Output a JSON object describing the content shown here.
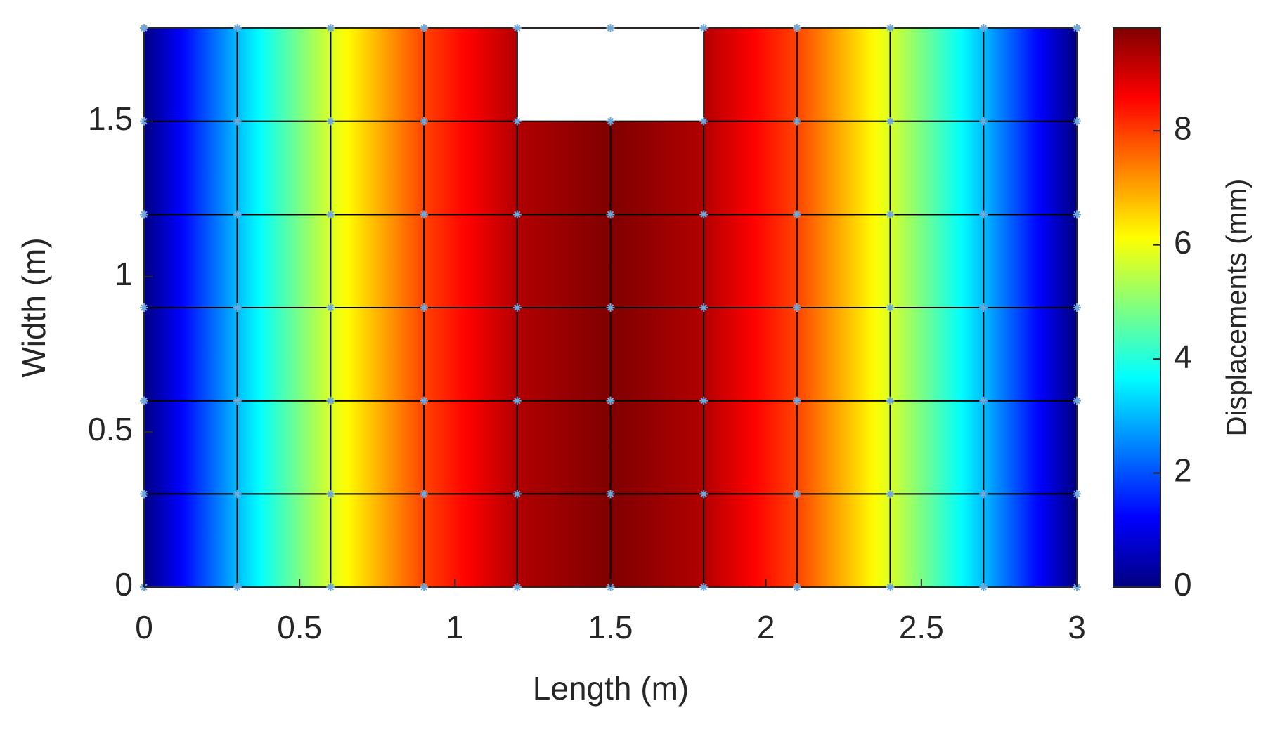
{
  "chart_data": {
    "type": "mesh-contour",
    "xlabel": "Length (m)",
    "ylabel": "Width (m)",
    "x": [
      0,
      0.3,
      0.6,
      0.9,
      1.2,
      1.5,
      1.8,
      2.1,
      2.4,
      2.7,
      3
    ],
    "y": [
      0,
      0.3,
      0.6,
      0.9,
      1.2,
      1.5,
      1.8
    ],
    "values": [
      0,
      3.03,
      5.76,
      7.93,
      9.32,
      9.8,
      9.32,
      7.93,
      5.76,
      3.03,
      0
    ],
    "holes": [
      {
        "xlim": [
          1.2,
          1.8
        ],
        "ylim": [
          1.5,
          1.8
        ]
      }
    ],
    "xlim": [
      0,
      3
    ],
    "xticks": [
      0,
      0.5,
      1,
      1.5,
      2,
      2.5,
      3
    ],
    "ylim": [
      0,
      1.8
    ],
    "yticks": [
      0,
      0.5,
      1,
      1.5
    ],
    "colormap": "jet",
    "node_color": "#6fa8dc",
    "mesh_color": "#000000",
    "colorbar": {
      "label": "Displacements (mm)",
      "clim": [
        0,
        9.8
      ],
      "ticks": [
        0,
        2,
        4,
        6,
        8
      ]
    }
  }
}
